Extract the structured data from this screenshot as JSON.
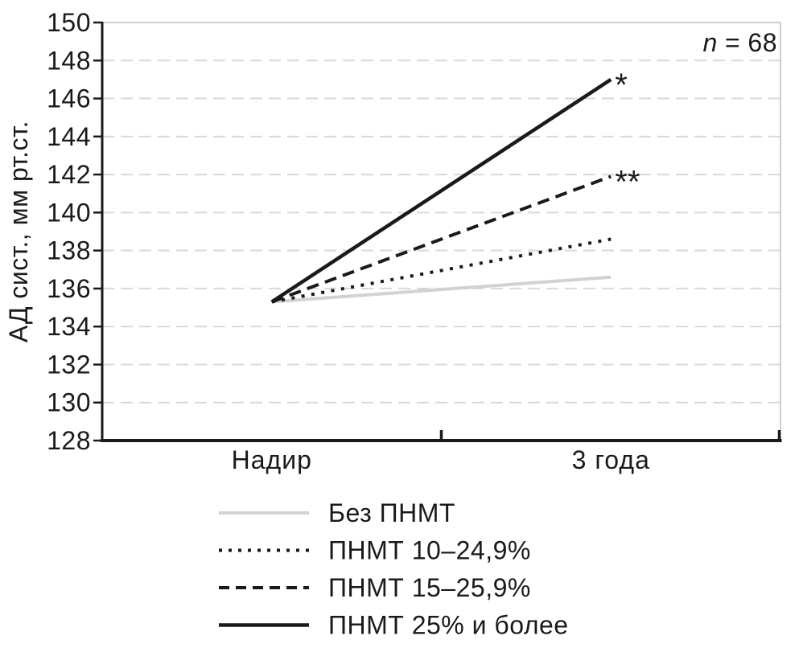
{
  "annotation": {
    "symbol": "n",
    "rest": "= 68"
  },
  "chart_data": {
    "type": "line",
    "title": "",
    "xlabel": "",
    "ylabel": "АД сист., мм рт.ст.",
    "categories": [
      "Надир",
      "3 года"
    ],
    "ylim": [
      128,
      150
    ],
    "ytick_step": 2,
    "grid": "horizontal-dashed",
    "legend_position": "bottom",
    "sample_size_note": "n = 68",
    "series": [
      {
        "name": "Без ПНМТ",
        "line_style": "solid",
        "color": "#d2d2d2",
        "values": [
          135.3,
          136.6
        ],
        "significance": ""
      },
      {
        "name": "ПНМТ 10–24,9%",
        "line_style": "dotted",
        "color": "#1a1a1a",
        "values": [
          135.3,
          138.6
        ],
        "significance": ""
      },
      {
        "name": "ПНМТ 15–25,9%",
        "line_style": "dashed",
        "color": "#1a1a1a",
        "values": [
          135.3,
          141.9
        ],
        "significance": "**"
      },
      {
        "name": "ПНМТ 25% и более",
        "line_style": "solid",
        "color": "#1a1a1a",
        "values": [
          135.3,
          147.0
        ],
        "significance": "*"
      }
    ]
  },
  "colors": {
    "ink": "#1a1a1a",
    "gridline": "#d9d9d9",
    "frame": "#cdcdcd",
    "no_pnmt_line": "#d2d2d2"
  }
}
